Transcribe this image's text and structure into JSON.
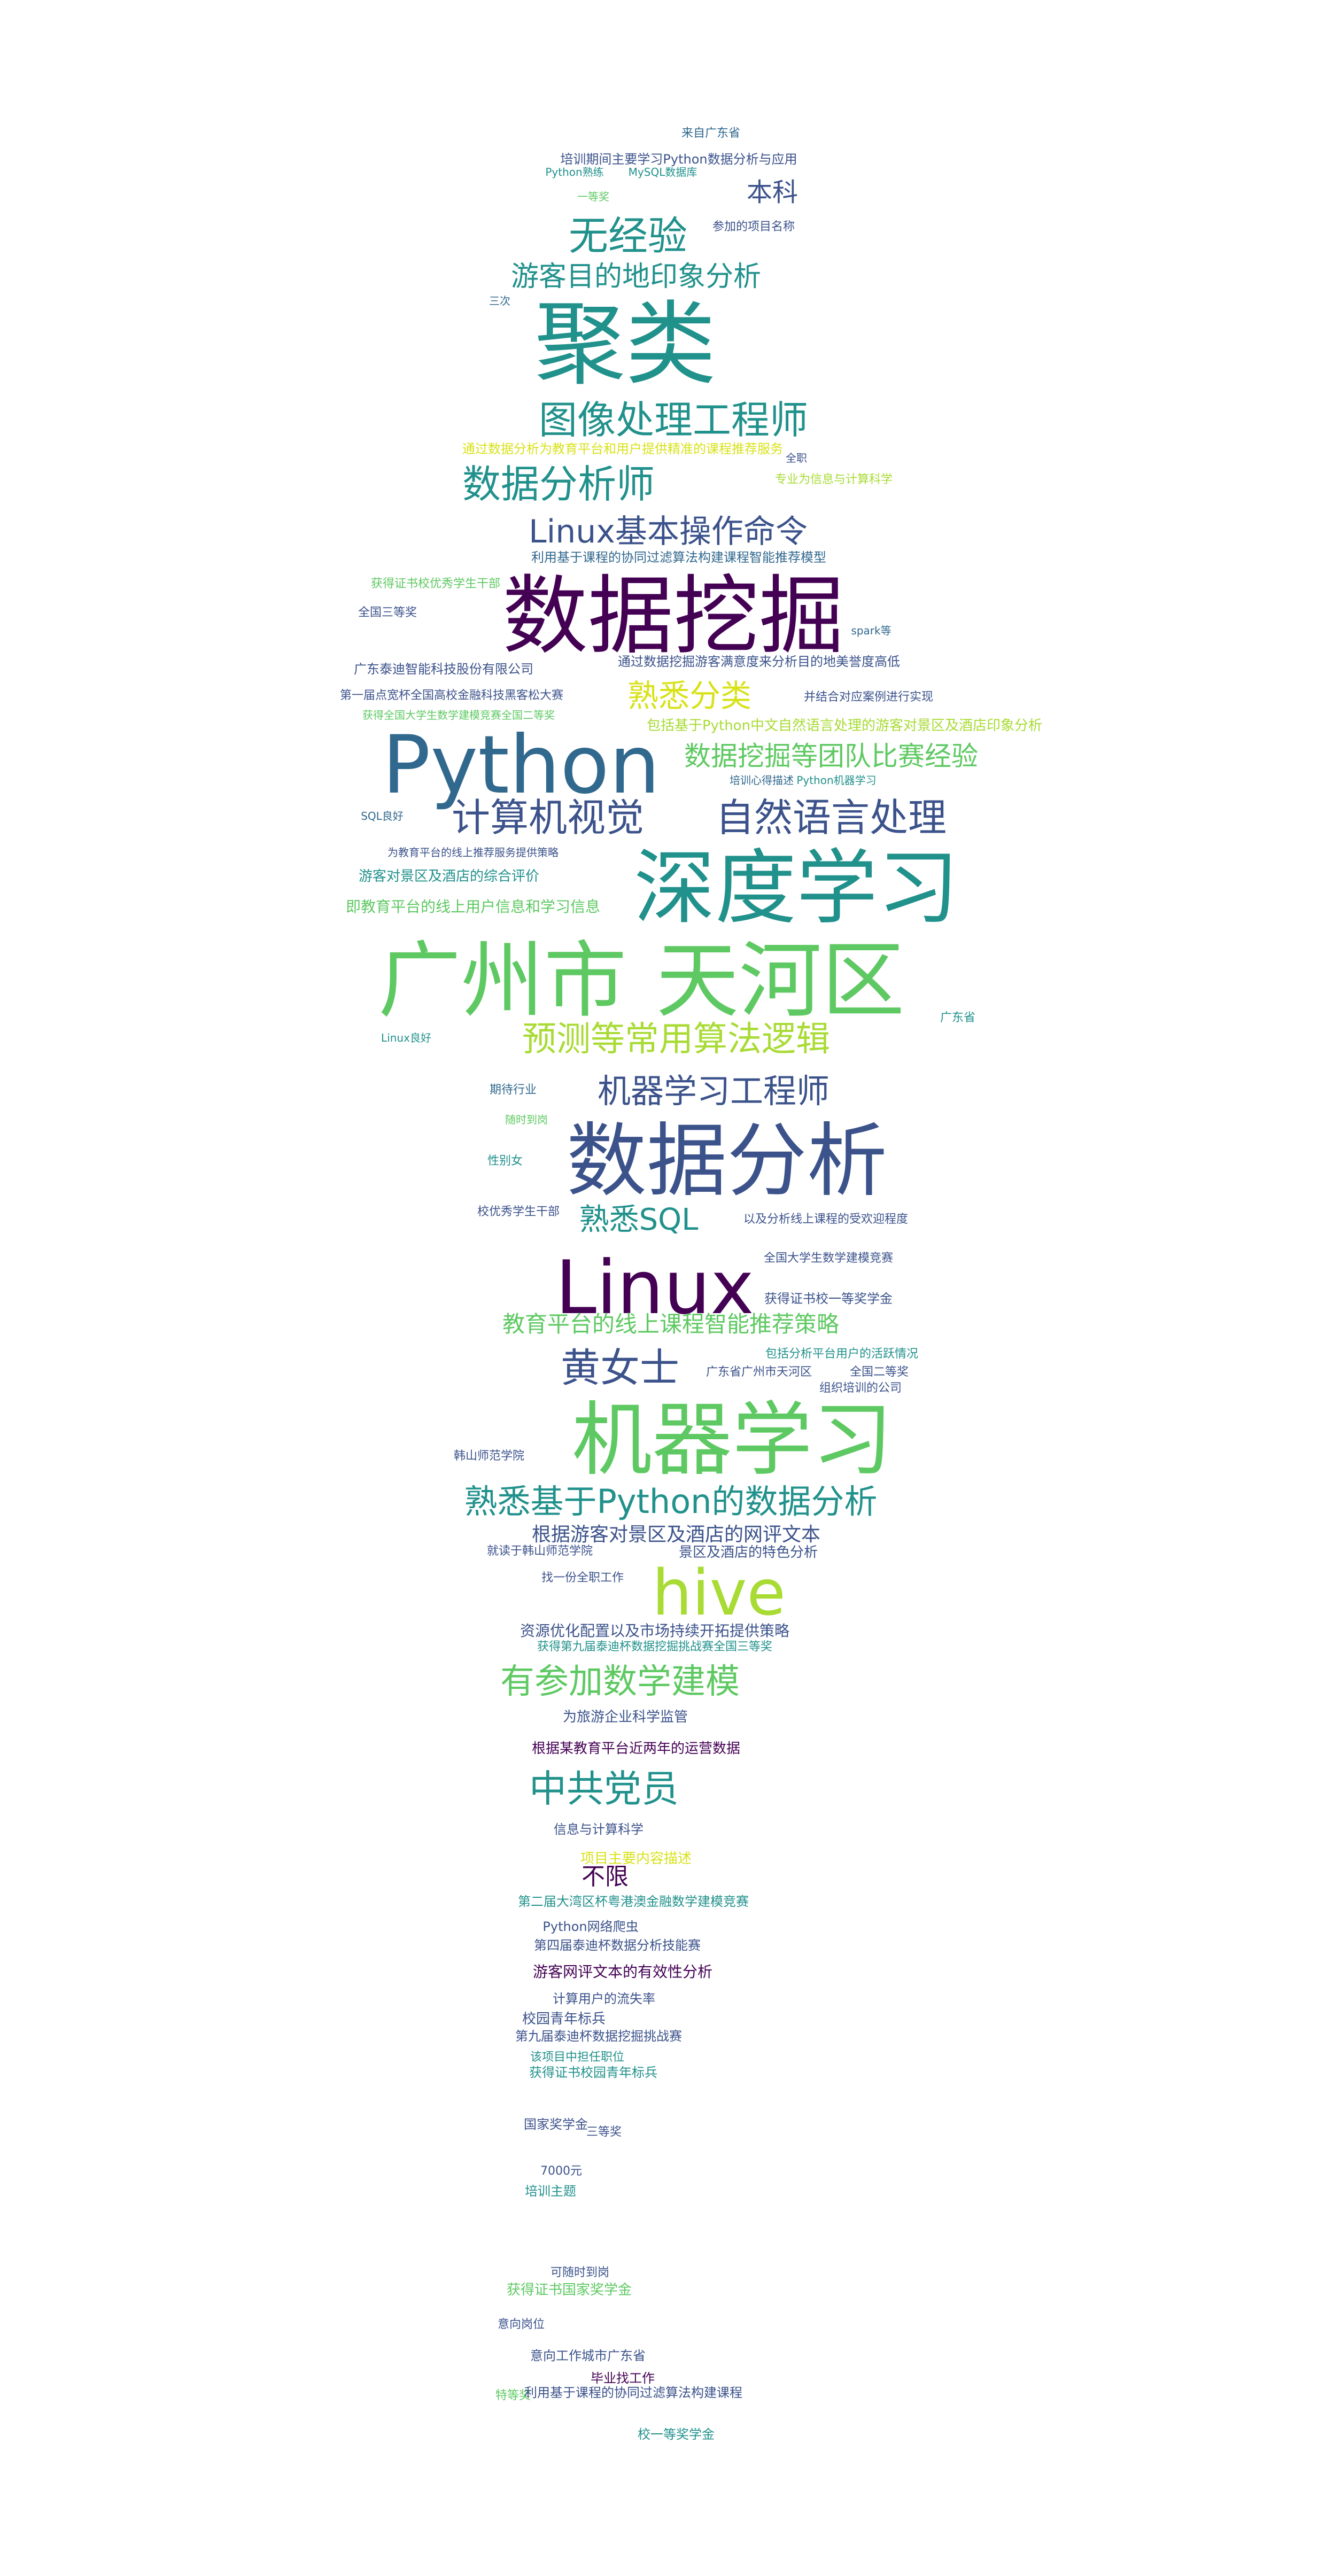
{
  "palette": {
    "purple": "#440154",
    "indigo": "#3b528b",
    "teal": "#21918c",
    "green": "#5ec962",
    "lime": "#a8db34",
    "yellow": "#d8e219",
    "navy": "#31688e"
  },
  "words": [
    {
      "text": "来自广东省",
      "color": "navy"
    },
    {
      "text": "培训期间主要学习Python数据分析与应用",
      "color": "indigo"
    },
    {
      "text": "Python熟练",
      "color": "teal"
    },
    {
      "text": "MySQL数据库",
      "color": "teal"
    },
    {
      "text": "本科",
      "color": "indigo"
    },
    {
      "text": "一等奖",
      "color": "green"
    },
    {
      "text": "无经验",
      "color": "teal"
    },
    {
      "text": "参加的项目名称",
      "color": "indigo"
    },
    {
      "text": "游客目的地印象分析",
      "color": "teal"
    },
    {
      "text": "三次",
      "color": "navy"
    },
    {
      "text": "聚类",
      "color": "teal"
    },
    {
      "text": "图像处理工程师",
      "color": "teal"
    },
    {
      "text": "通过数据分析为教育平台和用户提供精准的课程推荐服务",
      "color": "yellow"
    },
    {
      "text": "全职",
      "color": "indigo"
    },
    {
      "text": "专业为信息与计算科学",
      "color": "lime"
    },
    {
      "text": "数据分析师",
      "color": "teal"
    },
    {
      "text": "Linux基本操作命令",
      "color": "indigo"
    },
    {
      "text": "利用基于课程的协同过滤算法构建课程智能推荐模型",
      "color": "navy"
    },
    {
      "text": "获得证书校优秀学生干部",
      "color": "green"
    },
    {
      "text": "数据挖掘",
      "color": "purple"
    },
    {
      "text": "全国三等奖",
      "color": "indigo"
    },
    {
      "text": "spark等",
      "color": "navy"
    },
    {
      "text": "广东泰迪智能科技股份有限公司",
      "color": "indigo"
    },
    {
      "text": "通过数据挖掘游客满意度来分析目的地美誉度高低",
      "color": "indigo"
    },
    {
      "text": "第一届点宽杯全国高校金融科技黑客松大赛",
      "color": "indigo"
    },
    {
      "text": "熟悉分类",
      "color": "yellow"
    },
    {
      "text": "并结合对应案例进行实现",
      "color": "indigo"
    },
    {
      "text": "获得全国大学生数学建模竞赛全国二等奖",
      "color": "green"
    },
    {
      "text": "包括基于Python中文自然语言处理的游客对景区及酒店印象分析",
      "color": "lime"
    },
    {
      "text": "Python",
      "color": "navy"
    },
    {
      "text": "数据挖掘等团队比赛经验",
      "color": "green"
    },
    {
      "text": "培训心得描述",
      "color": "navy"
    },
    {
      "text": "Python机器学习",
      "color": "teal"
    },
    {
      "text": "计算机视觉",
      "color": "indigo"
    },
    {
      "text": "自然语言处理",
      "color": "indigo"
    },
    {
      "text": "SQL良好",
      "color": "navy"
    },
    {
      "text": "为教育平台的线上推荐服务提供策略",
      "color": "indigo"
    },
    {
      "text": "游客对景区及酒店的综合评价",
      "color": "teal"
    },
    {
      "text": "即教育平台的线上用户信息和学习信息",
      "color": "green"
    },
    {
      "text": "深度学习",
      "color": "teal"
    },
    {
      "text": "广州市",
      "color": "green"
    },
    {
      "text": "天河区",
      "color": "green"
    },
    {
      "text": "广东省",
      "color": "teal"
    },
    {
      "text": "Linux良好",
      "color": "teal"
    },
    {
      "text": "预测等常用算法逻辑",
      "color": "lime"
    },
    {
      "text": "机器学习工程师",
      "color": "indigo"
    },
    {
      "text": "期待行业",
      "color": "navy"
    },
    {
      "text": "随时到岗",
      "color": "green"
    },
    {
      "text": "数据分析",
      "color": "indigo"
    },
    {
      "text": "性别女",
      "color": "teal"
    },
    {
      "text": "熟悉SQL",
      "color": "teal"
    },
    {
      "text": "校优秀学生干部",
      "color": "indigo"
    },
    {
      "text": "以及分析线上课程的受欢迎程度",
      "color": "indigo"
    },
    {
      "text": "Linux",
      "color": "purple"
    },
    {
      "text": "全国大学生数学建模竞赛",
      "color": "indigo"
    },
    {
      "text": "获得证书校一等奖学金",
      "color": "indigo"
    },
    {
      "text": "教育平台的线上课程智能推荐策略",
      "color": "green"
    },
    {
      "text": "包括分析平台用户的活跃情况",
      "color": "teal"
    },
    {
      "text": "黄女士",
      "color": "indigo"
    },
    {
      "text": "广东省广州市天河区",
      "color": "indigo"
    },
    {
      "text": "全国二等奖",
      "color": "indigo"
    },
    {
      "text": "组织培训的公司",
      "color": "indigo"
    },
    {
      "text": "机器学习",
      "color": "green"
    },
    {
      "text": "韩山师范学院",
      "color": "indigo"
    },
    {
      "text": "熟悉基于Python的数据分析",
      "color": "teal"
    },
    {
      "text": "根据游客对景区及酒店的网评文本",
      "color": "indigo"
    },
    {
      "text": "就读于韩山师范学院",
      "color": "indigo"
    },
    {
      "text": "景区及酒店的特色分析",
      "color": "indigo"
    },
    {
      "text": "hive",
      "color": "lime"
    },
    {
      "text": "找一份全职工作",
      "color": "indigo"
    },
    {
      "text": "资源优化配置以及市场持续开拓提供策略",
      "color": "indigo"
    },
    {
      "text": "获得第九届泰迪杯数据挖掘挑战赛全国三等奖",
      "color": "teal"
    },
    {
      "text": "有参加数学建模",
      "color": "green"
    },
    {
      "text": "为旅游企业科学监管",
      "color": "indigo"
    },
    {
      "text": "根据某教育平台近两年的运营数据",
      "color": "purple"
    },
    {
      "text": "中共党员",
      "color": "teal"
    },
    {
      "text": "信息与计算科学",
      "color": "indigo"
    },
    {
      "text": "项目主要内容描述",
      "color": "yellow"
    },
    {
      "text": "不限",
      "color": "purple"
    },
    {
      "text": "第二届大湾区杯粤港澳金融数学建模竞赛",
      "color": "teal"
    },
    {
      "text": "Python网络爬虫",
      "color": "indigo"
    },
    {
      "text": "第四届泰迪杯数据分析技能赛",
      "color": "indigo"
    },
    {
      "text": "游客网评文本的有效性分析",
      "color": "purple"
    },
    {
      "text": "计算用户的流失率",
      "color": "indigo"
    },
    {
      "text": "校园青年标兵",
      "color": "indigo"
    },
    {
      "text": "第九届泰迪杯数据挖掘挑战赛",
      "color": "indigo"
    },
    {
      "text": "该项目中担任职位",
      "color": "teal"
    },
    {
      "text": "获得证书校园青年标兵",
      "color": "teal"
    },
    {
      "text": "国家奖学金",
      "color": "indigo"
    },
    {
      "text": "三等奖",
      "color": "indigo"
    },
    {
      "text": "7000元",
      "color": "indigo"
    },
    {
      "text": "培训主题",
      "color": "teal"
    },
    {
      "text": "可随时到岗",
      "color": "indigo"
    },
    {
      "text": "获得证书国家奖学金",
      "color": "green"
    },
    {
      "text": "意向岗位",
      "color": "indigo"
    },
    {
      "text": "意向工作城市广东省",
      "color": "indigo"
    },
    {
      "text": "毕业找工作",
      "color": "purple"
    },
    {
      "text": "特等奖",
      "color": "green"
    },
    {
      "text": "利用基于课程的协同过滤算法构建课程",
      "color": "indigo"
    },
    {
      "text": "校一等奖学金",
      "color": "teal"
    }
  ]
}
